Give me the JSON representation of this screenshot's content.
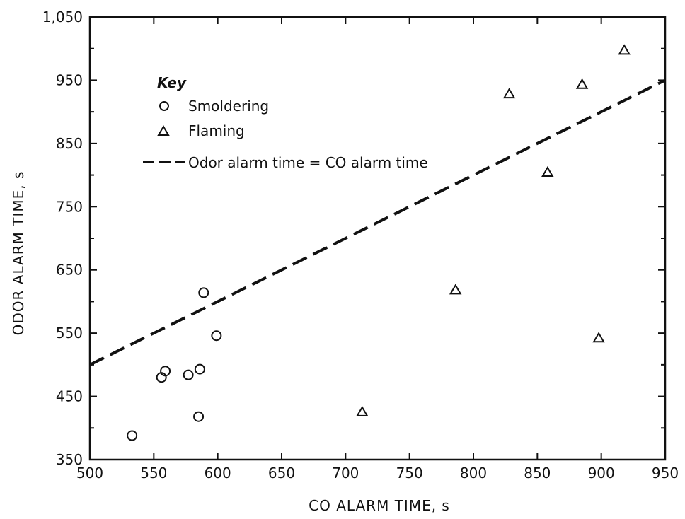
{
  "colors": {
    "ink": "#111111",
    "background": "#ffffff"
  },
  "chart_data": {
    "type": "scatter",
    "title": "",
    "xlabel": "CO ALARM TIME, s",
    "ylabel": "ODOR ALARM TIME, s",
    "xlim": [
      500,
      950
    ],
    "ylim": [
      350,
      1050
    ],
    "x_ticks": [
      500,
      550,
      600,
      650,
      700,
      750,
      800,
      850,
      900,
      950
    ],
    "x_tick_labels": [
      "500",
      "550",
      "600",
      "650",
      "700",
      "750",
      "800",
      "850",
      "900",
      "950"
    ],
    "y_ticks": [
      350,
      450,
      550,
      650,
      750,
      850,
      950,
      1050
    ],
    "y_tick_labels": [
      "350",
      "450",
      "550",
      "650",
      "750",
      "850",
      "950",
      "1,050"
    ],
    "grid": false,
    "legend": {
      "title": "Key",
      "placement": "top-left",
      "entries": [
        {
          "label": "Smoldering",
          "marker": "circle"
        },
        {
          "label": "Flaming",
          "marker": "triangle"
        },
        {
          "label": "Odor alarm time = CO alarm time",
          "marker": "dashed-line"
        }
      ]
    },
    "series": [
      {
        "name": "Smoldering",
        "marker": "circle",
        "points": [
          {
            "x": 533,
            "y": 388
          },
          {
            "x": 556,
            "y": 480
          },
          {
            "x": 559,
            "y": 490
          },
          {
            "x": 577,
            "y": 484
          },
          {
            "x": 585,
            "y": 418
          },
          {
            "x": 586,
            "y": 493
          },
          {
            "x": 589,
            "y": 614
          },
          {
            "x": 599,
            "y": 546
          }
        ]
      },
      {
        "name": "Flaming",
        "marker": "triangle",
        "points": [
          {
            "x": 713,
            "y": 425
          },
          {
            "x": 786,
            "y": 618
          },
          {
            "x": 828,
            "y": 928
          },
          {
            "x": 858,
            "y": 804
          },
          {
            "x": 885,
            "y": 943
          },
          {
            "x": 898,
            "y": 542
          },
          {
            "x": 918,
            "y": 997
          }
        ]
      },
      {
        "name": "Odor alarm time = CO alarm time",
        "type": "line",
        "style": "dashed",
        "x": [
          500,
          950
        ],
        "y": [
          500,
          950
        ]
      }
    ]
  }
}
